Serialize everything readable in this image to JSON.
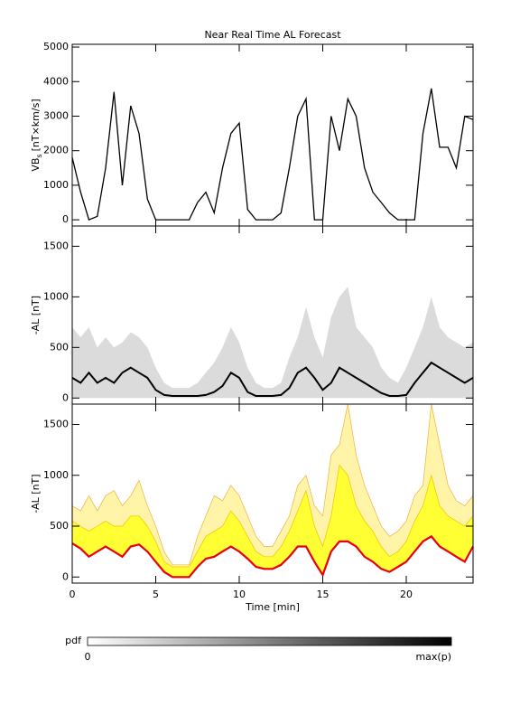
{
  "chart_data": [
    {
      "type": "line",
      "title": "Near Real Time AL Forecast",
      "ylabel_main": "VB",
      "ylabel_sub": "s",
      "ylabel_unit": "[nT×km/s]",
      "x": [
        0,
        0.5,
        1,
        1.5,
        2,
        2.5,
        3,
        3.5,
        4,
        4.5,
        5,
        5.5,
        6,
        6.5,
        7,
        7.5,
        8,
        8.5,
        9,
        9.5,
        10,
        10.5,
        11,
        11.5,
        12,
        12.5,
        13,
        13.5,
        14,
        14.5,
        15,
        15.5,
        16,
        16.5,
        17,
        17.5,
        18,
        18.5,
        19,
        19.5,
        20,
        20.5,
        21,
        21.5,
        22,
        22.5,
        23,
        23.5,
        24
      ],
      "values": [
        1800,
        800,
        0,
        100,
        1500,
        3700,
        1000,
        3300,
        2500,
        600,
        0,
        0,
        0,
        0,
        0,
        500,
        800,
        200,
        1500,
        2500,
        2800,
        300,
        0,
        0,
        0,
        200,
        1500,
        3000,
        3500,
        0,
        0,
        3000,
        2000,
        3500,
        3000,
        1500,
        800,
        500,
        200,
        0,
        0,
        0,
        2500,
        3800,
        2100,
        2100,
        1500,
        3000,
        2900
      ],
      "color": "#000000",
      "xlim": [
        0,
        24
      ],
      "xticks": [
        0,
        5,
        10,
        15,
        20
      ],
      "ylim": [
        -180,
        5080
      ],
      "yticks": [
        0,
        1000,
        2000,
        3000,
        4000,
        5000
      ]
    },
    {
      "type": "density",
      "ylabel": "-AL [nT]",
      "x": [
        0,
        0.5,
        1,
        1.5,
        2,
        2.5,
        3,
        3.5,
        4,
        4.5,
        5,
        5.5,
        6,
        6.5,
        7,
        7.5,
        8,
        8.5,
        9,
        9.5,
        10,
        10.5,
        11,
        11.5,
        12,
        12.5,
        13,
        13.5,
        14,
        14.5,
        15,
        15.5,
        16,
        16.5,
        17,
        17.5,
        18,
        18.5,
        19,
        19.5,
        20,
        20.5,
        21,
        21.5,
        22,
        22.5,
        23,
        23.5,
        24
      ],
      "series": [
        {
          "color": "#cfcfcf",
          "values": [
            700,
            600,
            700,
            500,
            600,
            500,
            550,
            650,
            600,
            500,
            300,
            150,
            100,
            100,
            100,
            150,
            250,
            350,
            500,
            700,
            550,
            300,
            150,
            100,
            100,
            150,
            400,
            600,
            900,
            600,
            400,
            800,
            1000,
            1100,
            700,
            600,
            500,
            300,
            200,
            150,
            300,
            500,
            700,
            1000,
            700,
            600,
            550,
            500,
            550
          ]
        },
        {
          "color": "#000000",
          "values": [
            200,
            150,
            250,
            150,
            200,
            150,
            250,
            300,
            250,
            200,
            80,
            30,
            20,
            20,
            20,
            20,
            30,
            60,
            120,
            250,
            200,
            60,
            20,
            20,
            20,
            30,
            100,
            250,
            300,
            200,
            80,
            150,
            300,
            250,
            200,
            150,
            100,
            50,
            20,
            20,
            30,
            150,
            250,
            350,
            300,
            250,
            200,
            150,
            200
          ]
        }
      ],
      "xlim": [
        0,
        24
      ],
      "xticks": [
        0,
        5,
        10,
        15,
        20
      ],
      "ylim": [
        -60,
        1700
      ],
      "yticks": [
        0,
        500,
        1000,
        1500
      ]
    },
    {
      "type": "band",
      "ylabel": "-AL [nT]",
      "xlabel": "Time [min]",
      "x": [
        0,
        0.5,
        1,
        1.5,
        2,
        2.5,
        3,
        3.5,
        4,
        4.5,
        5,
        5.5,
        6,
        6.5,
        7,
        7.5,
        8,
        8.5,
        9,
        9.5,
        10,
        10.5,
        11,
        11.5,
        12,
        12.5,
        13,
        13.5,
        14,
        14.5,
        15,
        15.5,
        16,
        16.5,
        17,
        17.5,
        18,
        18.5,
        19,
        19.5,
        20,
        20.5,
        21,
        21.5,
        22,
        22.5,
        23,
        23.5,
        24
      ],
      "series": [
        {
          "color": "#fff4a8",
          "values": [
            700,
            650,
            800,
            650,
            800,
            850,
            700,
            800,
            950,
            700,
            500,
            250,
            120,
            120,
            120,
            400,
            600,
            800,
            750,
            900,
            800,
            600,
            400,
            300,
            300,
            450,
            600,
            900,
            1000,
            700,
            600,
            1200,
            1300,
            1700,
            1200,
            900,
            700,
            500,
            400,
            450,
            550,
            800,
            900,
            1700,
            1300,
            900,
            750,
            700,
            800
          ]
        },
        {
          "color": "#ffff33",
          "values": [
            550,
            500,
            450,
            500,
            550,
            500,
            500,
            600,
            600,
            500,
            350,
            150,
            100,
            100,
            100,
            250,
            400,
            450,
            500,
            650,
            550,
            400,
            250,
            200,
            200,
            300,
            450,
            650,
            850,
            500,
            300,
            600,
            1100,
            1000,
            700,
            550,
            450,
            300,
            200,
            250,
            350,
            550,
            700,
            1000,
            700,
            600,
            550,
            500,
            600
          ]
        },
        {
          "color": "#e8000b",
          "values": [
            330,
            280,
            200,
            250,
            300,
            250,
            200,
            300,
            320,
            250,
            150,
            50,
            0,
            0,
            0,
            100,
            180,
            200,
            250,
            300,
            250,
            180,
            100,
            80,
            80,
            120,
            200,
            300,
            300,
            150,
            20,
            250,
            350,
            350,
            300,
            200,
            150,
            80,
            50,
            100,
            150,
            250,
            350,
            400,
            300,
            250,
            200,
            150,
            300
          ]
        }
      ],
      "xlim": [
        0,
        24
      ],
      "xticks": [
        0,
        5,
        10,
        15,
        20
      ],
      "ylim": [
        -60,
        1700
      ],
      "yticks": [
        0,
        500,
        1000,
        1500
      ]
    }
  ],
  "colorbar": {
    "label": "pdf",
    "min_label": "0",
    "max_label": "max(p)"
  }
}
